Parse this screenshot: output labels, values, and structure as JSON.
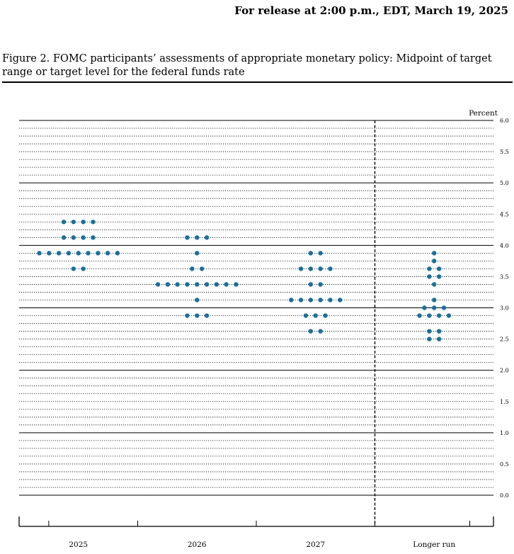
{
  "header": {
    "release": "For release at 2:00 p.m., EDT, March 19, 2025"
  },
  "figure": {
    "title": "Figure 2.  FOMC participants’ assessments of appropriate monetary policy:  Midpoint of target range or target level for the federal funds rate"
  },
  "colors": {
    "dot": "#1a6f9c"
  },
  "chart_data": {
    "type": "scatter",
    "title": "",
    "ylabel": "Percent",
    "ylim": [
      0,
      6
    ],
    "y_major_ticks": [
      "0.0",
      "0.5",
      "1.0",
      "1.5",
      "2.0",
      "2.5",
      "3.0",
      "3.5",
      "4.0",
      "4.5",
      "5.0",
      "5.5",
      "6.0"
    ],
    "grid": "dotted minor every 0.125, solid every 1.0",
    "categories": [
      "2025",
      "2026",
      "2027",
      "Longer run"
    ],
    "divider_before": "Longer run",
    "series": [
      {
        "x": "2025",
        "points": [
          {
            "y": 4.375,
            "count": 4
          },
          {
            "y": 4.125,
            "count": 4
          },
          {
            "y": 3.875,
            "count": 9
          },
          {
            "y": 3.625,
            "count": 2
          }
        ]
      },
      {
        "x": "2026",
        "points": [
          {
            "y": 4.125,
            "count": 3
          },
          {
            "y": 3.875,
            "count": 1
          },
          {
            "y": 3.625,
            "count": 2
          },
          {
            "y": 3.375,
            "count": 9
          },
          {
            "y": 3.125,
            "count": 1
          },
          {
            "y": 2.875,
            "count": 3
          }
        ]
      },
      {
        "x": "2027",
        "points": [
          {
            "y": 3.875,
            "count": 2
          },
          {
            "y": 3.625,
            "count": 4
          },
          {
            "y": 3.375,
            "count": 2
          },
          {
            "y": 3.125,
            "count": 6
          },
          {
            "y": 2.875,
            "count": 3
          },
          {
            "y": 2.625,
            "count": 2
          }
        ]
      },
      {
        "x": "Longer run",
        "points": [
          {
            "y": 3.875,
            "count": 1
          },
          {
            "y": 3.75,
            "count": 1
          },
          {
            "y": 3.625,
            "count": 2
          },
          {
            "y": 3.5,
            "count": 2
          },
          {
            "y": 3.375,
            "count": 1
          },
          {
            "y": 3.125,
            "count": 1
          },
          {
            "y": 3.0,
            "count": 3
          },
          {
            "y": 2.875,
            "count": 4
          },
          {
            "y": 2.625,
            "count": 2
          },
          {
            "y": 2.5,
            "count": 2
          }
        ]
      }
    ]
  }
}
